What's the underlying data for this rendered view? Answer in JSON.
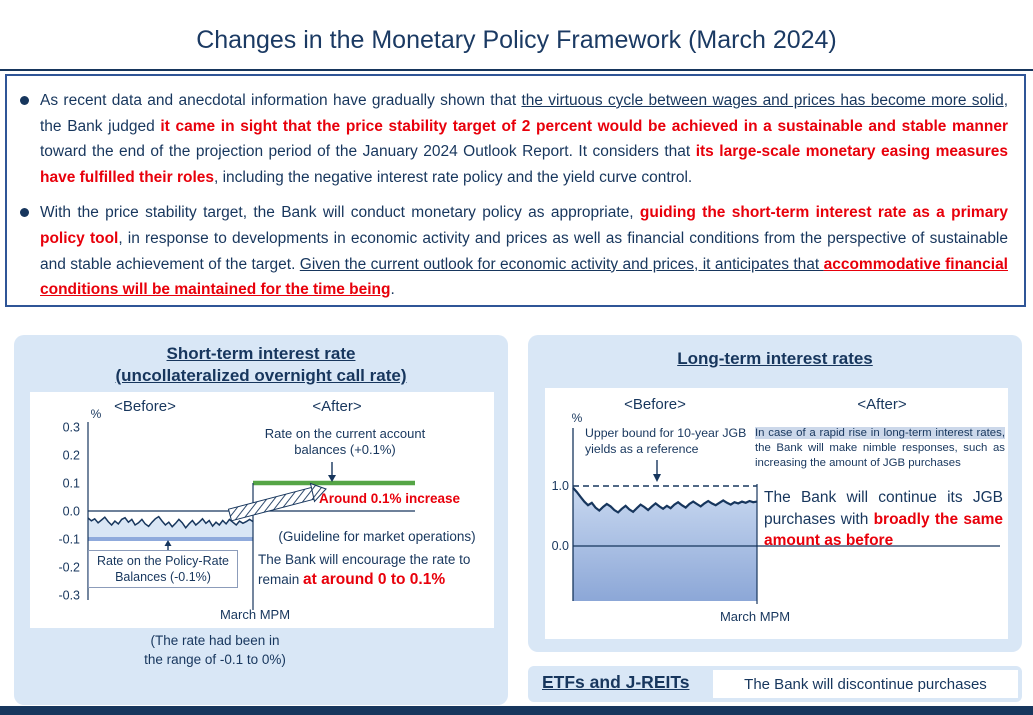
{
  "page": {
    "title": "Changes in the Monetary Policy Framework (March 2024)"
  },
  "colors": {
    "navy": "#17365d",
    "red": "#e8000b",
    "green": "#55a546",
    "panel_blue": "#d9e7f6",
    "border_blue": "#2f5597",
    "policy_line_blue": "#8faadc"
  },
  "summary_box": {
    "bullet1": [
      {
        "t": "As recent data and anecdotal information have gradually shown that "
      },
      {
        "t": "the virtuous cycle between wages and prices has become more solid",
        "c": "u"
      },
      {
        "t": ", the Bank judged "
      },
      {
        "t": "it came in sight that the price stability target of 2 percent would be achieved in a sustainable and stable manner",
        "c": "rb"
      },
      {
        "t": " toward the end of the projection period of the January 2024 Outlook Report. It considers that "
      },
      {
        "t": "its large-scale monetary easing measures have fulfilled their roles",
        "c": "rb"
      },
      {
        "t": ", including the negative interest rate policy and the yield curve control."
      }
    ],
    "bullet2": [
      {
        "t": "With the price stability target, the Bank will conduct monetary policy as appropriate, "
      },
      {
        "t": "guiding the short-term interest rate as a primary policy tool",
        "c": "rb"
      },
      {
        "t": ", in response to developments in economic activity and prices as well as financial conditions from the perspective of sustainable and stable achievement of the target. "
      },
      {
        "t": "Given the current outlook for economic activity and prices, it anticipates that ",
        "c": "u"
      },
      {
        "t": "accommodative financial conditions will be maintained for the time being",
        "c": "rbu"
      },
      {
        "t": "."
      }
    ]
  },
  "short_term_panel": {
    "title_line1": "Short-term interest rate",
    "title_line2": "(uncollateralized overnight call rate)",
    "before_label": "<Before>",
    "after_label": "<After>",
    "current_account_label": "Rate on the current account balances (+0.1%)",
    "increase_label": "Around 0.1% increase",
    "guideline_label": "(Guideline for market operations)",
    "encourage_segments": [
      {
        "t": "The Bank will encourage the rate to remain "
      },
      {
        "t": "at around 0 to 0.1%",
        "c": "rb-lg"
      }
    ],
    "policy_rate_label": "Rate on the Policy-Rate Balances (-0.1%)",
    "march_mpm": "March MPM",
    "footnote_line1": "(The rate had been in",
    "footnote_line2": "the range of -0.1 to 0%)"
  },
  "long_term_panel": {
    "title": "Long-term interest rates",
    "before_label": "<Before>",
    "after_label": "<After>",
    "upper_bound_label": "Upper bound for 10-year JGB yields as a reference",
    "nimble_segments": [
      {
        "t": "In case of a rapid rise in long-term interest rates,",
        "c": "hl"
      },
      {
        "t": " the Bank will make nimble responses, such as increasing the amount of JGB purchases"
      }
    ],
    "continue_segments": [
      {
        "t": "The Bank will continue its JGB purchases with "
      },
      {
        "t": "broadly the same amount as before",
        "c": "rb"
      }
    ],
    "march_mpm": "March MPM"
  },
  "etf_panel": {
    "title": "ETFs and J-REITs",
    "statement": "The Bank will discontinue purchases"
  },
  "chart_data": [
    {
      "id": "short_term",
      "type": "line",
      "title": "Short-term interest rate (uncollateralized overnight call rate)",
      "ylabel": "%",
      "ylim": [
        -0.3,
        0.3
      ],
      "y_ticks": [
        0.3,
        0.2,
        0.1,
        0.0,
        -0.1,
        -0.2,
        -0.3
      ],
      "x_sections": [
        "<Before>",
        "<After>"
      ],
      "x_divider_label": "March MPM",
      "policy_rate_level": -0.1,
      "after_guideline_level": 0.1,
      "after_guideline_range": [
        0,
        0.1
      ],
      "series": [
        {
          "name": "Uncollateralized overnight call rate (before March MPM)",
          "values": [
            -0.025,
            -0.035,
            -0.028,
            -0.042,
            -0.032,
            -0.022,
            -0.038,
            -0.05,
            -0.036,
            -0.046,
            -0.03,
            -0.024,
            -0.04,
            -0.03,
            -0.05,
            -0.042,
            -0.03,
            -0.046,
            -0.055,
            -0.04,
            -0.028,
            -0.02,
            -0.036,
            -0.05,
            -0.04,
            -0.056,
            -0.044,
            -0.03,
            -0.042,
            -0.06,
            -0.046,
            -0.034,
            -0.05,
            -0.04,
            -0.028,
            -0.044,
            -0.034,
            -0.054,
            -0.04,
            -0.05,
            -0.034,
            -0.046,
            -0.03,
            -0.04,
            -0.05,
            -0.036,
            -0.044,
            -0.038,
            -0.03,
            -0.038
          ]
        }
      ],
      "annotations": [
        "Rate on the current account balances (+0.1%)",
        "Around 0.1% increase",
        "(Guideline for market operations)",
        "The Bank will encourage the rate to remain at around 0 to 0.1%",
        "Rate on the Policy-Rate Balances (-0.1%)",
        "(The rate had been in the range of -0.1 to 0%)"
      ]
    },
    {
      "id": "long_term",
      "type": "line",
      "title": "Long-term interest rates",
      "ylabel": "%",
      "ylim": [
        0,
        1.2
      ],
      "y_ticks": [
        1.0,
        0.0
      ],
      "upper_bound_level": 1.0,
      "x_sections": [
        "<Before>",
        "<After>"
      ],
      "x_divider_label": "March MPM",
      "series": [
        {
          "name": "10-year JGB yield (before March MPM)",
          "values": [
            0.97,
            0.9,
            0.82,
            0.74,
            0.68,
            0.72,
            0.64,
            0.59,
            0.65,
            0.7,
            0.66,
            0.6,
            0.56,
            0.62,
            0.67,
            0.61,
            0.57,
            0.63,
            0.69,
            0.65,
            0.6,
            0.66,
            0.71,
            0.66,
            0.62,
            0.67,
            0.63,
            0.69,
            0.73,
            0.68,
            0.64,
            0.7,
            0.74,
            0.7,
            0.66,
            0.71,
            0.75,
            0.71,
            0.68,
            0.72,
            0.76,
            0.72,
            0.69,
            0.73,
            0.71,
            0.74,
            0.72,
            0.75,
            0.73,
            0.74
          ]
        }
      ],
      "annotations": [
        "Upper bound for 10-year JGB yields as a reference",
        "In case of a rapid rise in long-term interest rates, the Bank will make nimble responses, such as increasing the amount of JGB purchases",
        "The Bank will continue its JGB purchases with broadly the same amount as before"
      ]
    }
  ]
}
